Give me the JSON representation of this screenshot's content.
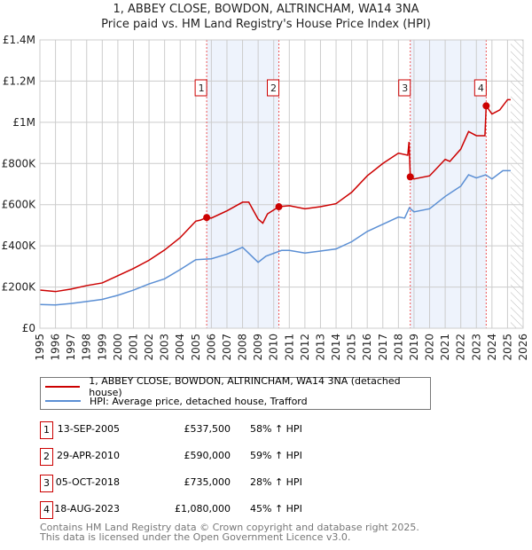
{
  "chart_data": {
    "type": "line",
    "title": "1, ABBEY CLOSE, BOWDON, ALTRINCHAM, WA14 3NA",
    "subtitle": "Price paid vs. HM Land Registry's House Price Index (HPI)",
    "xlim": [
      1995,
      2026
    ],
    "ylim": [
      0,
      1400000
    ],
    "x_ticks": [
      "1995",
      "1996",
      "1997",
      "1998",
      "1999",
      "2000",
      "2001",
      "2002",
      "2003",
      "2004",
      "2005",
      "2006",
      "2007",
      "2008",
      "2009",
      "2010",
      "2011",
      "2012",
      "2013",
      "2014",
      "2015",
      "2016",
      "2017",
      "2018",
      "2019",
      "2020",
      "2021",
      "2022",
      "2023",
      "2024",
      "2025",
      "2026"
    ],
    "y_ticks": [
      {
        "v": 0,
        "label": "£0"
      },
      {
        "v": 200000,
        "label": "£200K"
      },
      {
        "v": 400000,
        "label": "£400K"
      },
      {
        "v": 600000,
        "label": "£600K"
      },
      {
        "v": 800000,
        "label": "£800K"
      },
      {
        "v": 1000000,
        "label": "£1M"
      },
      {
        "v": 1200000,
        "label": "£1.2M"
      },
      {
        "v": 1400000,
        "label": "£1.4M"
      }
    ],
    "shaded_ranges": [
      [
        2005.7,
        2010.33
      ],
      [
        2018.76,
        2023.63
      ]
    ],
    "forecast_hatch_from": 2025.2,
    "series": [
      {
        "name": "1, ABBEY CLOSE, BOWDON, ALTRINCHAM, WA14 3NA (detached house)",
        "color": "#cc0000",
        "x": [
          1995,
          1996,
          1997,
          1998,
          1999,
          2000,
          2001,
          2002,
          2003,
          2004,
          2005,
          2005.3,
          2005.7,
          2006,
          2007,
          2008,
          2008.4,
          2009,
          2009.3,
          2009.6,
          2010.33,
          2011,
          2012,
          2013,
          2014,
          2015,
          2016,
          2017,
          2018,
          2018.6,
          2018.68,
          2018.76,
          2019,
          2020,
          2021,
          2021.3,
          2022,
          2022.5,
          2023,
          2023.55,
          2023.63,
          2024,
          2024.5,
          2025,
          2025.2
        ],
        "y": [
          185000,
          178000,
          190000,
          207000,
          220000,
          255000,
          290000,
          330000,
          380000,
          440000,
          520000,
          525000,
          537500,
          535000,
          570000,
          612000,
          612000,
          530000,
          510000,
          555000,
          590000,
          595000,
          580000,
          590000,
          605000,
          660000,
          740000,
          800000,
          850000,
          840000,
          905000,
          735000,
          725000,
          740000,
          820000,
          810000,
          870000,
          955000,
          935000,
          935000,
          1080000,
          1040000,
          1060000,
          1110000,
          1110000
        ]
      },
      {
        "name": "HPI: Average price, detached house, Trafford",
        "color": "#5b8fd4",
        "x": [
          1995,
          1996,
          1997,
          1998,
          1999,
          2000,
          2001,
          2002,
          2003,
          2004,
          2005,
          2006,
          2007,
          2008,
          2009,
          2009.5,
          2010.5,
          2011,
          2012,
          2013,
          2014,
          2015,
          2016,
          2017,
          2018,
          2018.4,
          2018.7,
          2019,
          2020,
          2021,
          2022,
          2022.5,
          2023,
          2023.6,
          2024,
          2024.7,
          2025.2
        ],
        "y": [
          115000,
          113000,
          120000,
          130000,
          140000,
          160000,
          185000,
          215000,
          240000,
          285000,
          333000,
          337000,
          360000,
          393000,
          320000,
          350000,
          378000,
          378000,
          365000,
          375000,
          385000,
          420000,
          470000,
          505000,
          540000,
          535000,
          585000,
          565000,
          580000,
          640000,
          690000,
          745000,
          730000,
          745000,
          725000,
          765000,
          765000
        ]
      }
    ],
    "sales": [
      {
        "n": "1",
        "x": 2005.7,
        "y": 537500,
        "date": "13-SEP-2005",
        "price": "£537,500",
        "hpi": "58% ↑ HPI"
      },
      {
        "n": "2",
        "x": 2010.33,
        "y": 590000,
        "date": "29-APR-2010",
        "price": "£590,000",
        "hpi": "59% ↑ HPI"
      },
      {
        "n": "3",
        "x": 2018.76,
        "y": 735000,
        "date": "05-OCT-2018",
        "price": "£735,000",
        "hpi": "28% ↑ HPI"
      },
      {
        "n": "4",
        "x": 2023.63,
        "y": 1080000,
        "date": "18-AUG-2023",
        "price": "£1,080,000",
        "hpi": "45% ↑ HPI"
      }
    ]
  },
  "footer": {
    "line1": "Contains HM Land Registry data © Crown copyright and database right 2025.",
    "line2": "This data is licensed under the Open Government Licence v3.0."
  }
}
